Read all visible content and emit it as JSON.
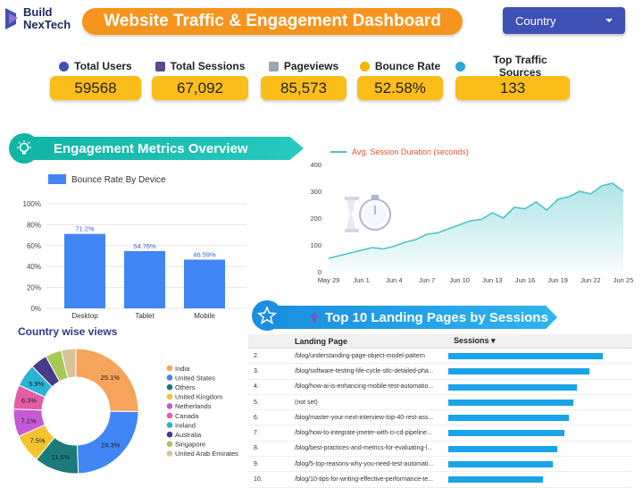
{
  "brand": {
    "line1": "Build",
    "line2": "NexTech"
  },
  "header": {
    "title": "Website Traffic & Engagement Dashboard"
  },
  "filter": {
    "label": "Country"
  },
  "kpis": [
    {
      "label": "Total Users",
      "value": "59568",
      "icon": "users-icon",
      "color": "#3f51b5"
    },
    {
      "label": "Total Sessions",
      "value": "67,092",
      "icon": "footprints-icon",
      "color": "#5c4b8a"
    },
    {
      "label": "Pageviews",
      "value": "85,573",
      "icon": "document-icon",
      "color": "#9aa5b5"
    },
    {
      "label": "Bounce Rate",
      "value": "52.58%",
      "icon": "lightbulb-icon",
      "color": "#f4b400"
    },
    {
      "label": "Top Traffic Sources",
      "value": "133",
      "icon": "globe-icon",
      "color": "#2aa6d9"
    }
  ],
  "sections": {
    "engagement": "Engagement Metrics Overview",
    "landing": "Top 10 Landing Pages by Sessions",
    "country": "Country wise views"
  },
  "chart_data": [
    {
      "type": "bar",
      "name": "bounce-rate-by-device",
      "legend": "Bounce Rate By Device",
      "categories": [
        "Desktop",
        "Tablet",
        "Mobile"
      ],
      "values": [
        71.2,
        54.76,
        46.59
      ],
      "labels": [
        "71.2%",
        "54.76%",
        "46.59%"
      ],
      "ylim": [
        0,
        100
      ],
      "yticks": [
        "0%",
        "20%",
        "40%",
        "60%",
        "80%",
        "100%"
      ],
      "color": "#4285f4",
      "grid": true,
      "legend_position": "top-left"
    },
    {
      "type": "area",
      "name": "avg-session-duration",
      "legend": "Avg. Session Duration (seconds)",
      "x": [
        "May 29",
        "May 30",
        "May 31",
        "Jun 1",
        "Jun 2",
        "Jun 3",
        "Jun 4",
        "Jun 5",
        "Jun 6",
        "Jun 7",
        "Jun 8",
        "Jun 9",
        "Jun 10",
        "Jun 11",
        "Jun 12",
        "Jun 13",
        "Jun 14",
        "Jun 15",
        "Jun 16",
        "Jun 17",
        "Jun 18",
        "Jun 19",
        "Jun 20",
        "Jun 21",
        "Jun 22",
        "Jun 23",
        "Jun 24",
        "Jun 25"
      ],
      "values": [
        50,
        60,
        70,
        80,
        90,
        85,
        95,
        110,
        120,
        140,
        145,
        160,
        175,
        190,
        195,
        220,
        200,
        240,
        235,
        260,
        230,
        270,
        280,
        300,
        290,
        320,
        330,
        300
      ],
      "xticks": [
        "May 29",
        "Jun 1",
        "Jun 4",
        "Jun 7",
        "Jun 10",
        "Jun 13",
        "Jun 16",
        "Jun 19",
        "Jun 22",
        "Jun 25"
      ],
      "yticks": [
        0,
        100,
        200,
        300,
        400
      ],
      "ylim": [
        0,
        400
      ],
      "color": "#4cc3c8",
      "legend_position": "top-left"
    },
    {
      "type": "pie",
      "name": "country-wise-views",
      "donut": true,
      "labels": [
        "India",
        "United States",
        "Others",
        "United Kingdom",
        "Netherlands",
        "Canada",
        "Ireland",
        "Australia",
        "Singapore",
        "United Arab Emirates"
      ],
      "values": [
        25.1,
        24.3,
        11.5,
        7.5,
        7.1,
        6.3,
        5.9,
        4.3,
        4.2,
        3.8
      ],
      "display_labels": [
        "25.1%",
        "24.3%",
        "11.5%",
        "7.5%",
        "7.1%",
        "6.3%",
        "5.9%",
        "",
        "",
        ""
      ],
      "colors": [
        "#f6a35b",
        "#4285f4",
        "#1b7a7a",
        "#f4c430",
        "#c659d8",
        "#e45ca8",
        "#2bb3d6",
        "#4a3a8a",
        "#a7c957",
        "#d9c39a"
      ],
      "legend_position": "right"
    },
    {
      "type": "table",
      "name": "top-landing-pages",
      "columns": [
        "Landing Page",
        "Sessions ▾"
      ],
      "rows": [
        {
          "rank": "2.",
          "page": "/blog/understanding-page-object-model-pattern",
          "sessions": 0.96
        },
        {
          "rank": "3.",
          "page": "/blog/software-testing-life-cycle-stlc-detailed-pha...",
          "sessions": 0.88
        },
        {
          "rank": "4.",
          "page": "/blog/how-ai-is-enhancing-mobile-test-automatio...",
          "sessions": 0.8
        },
        {
          "rank": "5.",
          "page": "(not set)",
          "sessions": 0.78
        },
        {
          "rank": "6.",
          "page": "/blog/master-your-next-interview-top-40-rest-ass...",
          "sessions": 0.75
        },
        {
          "rank": "7.",
          "page": "/blog/how-to-integrate-jmeter-with-ci-cd-pipeline...",
          "sessions": 0.72
        },
        {
          "rank": "8.",
          "page": "/blog/best-practices-and-metrics-for-evaluating-l...",
          "sessions": 0.68
        },
        {
          "rank": "9.",
          "page": "/blog/5-top-reasons-why-you-need-test-automati...",
          "sessions": 0.65
        },
        {
          "rank": "10.",
          "page": "/blog/10-tips-for-writing-effective-performance-te...",
          "sessions": 0.59
        }
      ]
    }
  ]
}
